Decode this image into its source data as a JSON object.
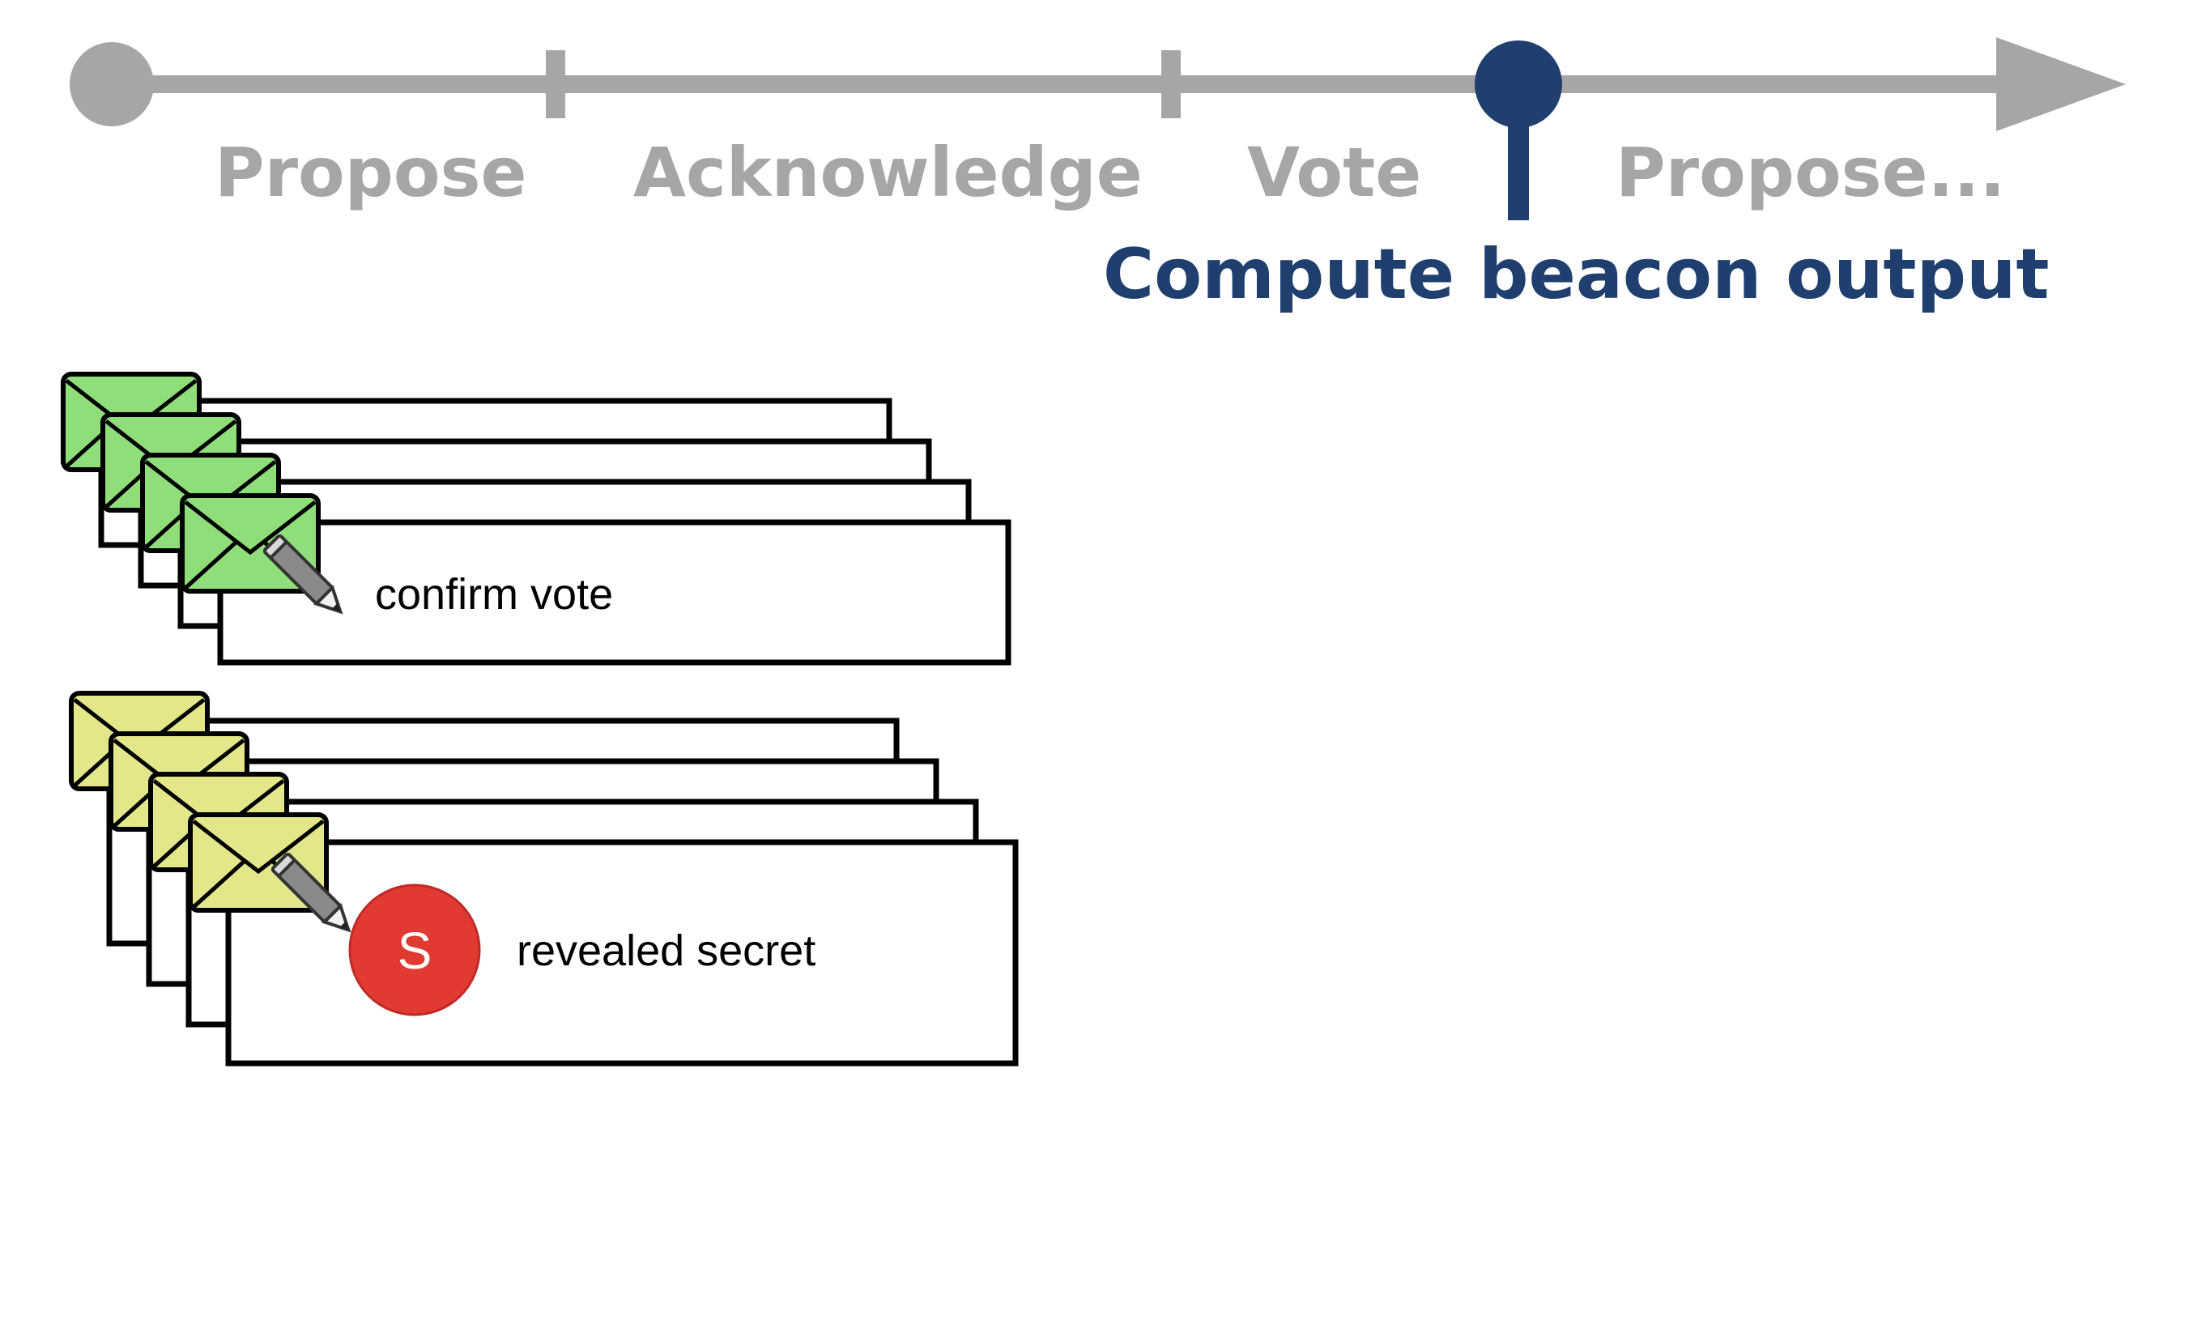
{
  "timeline": {
    "phases": [
      "Propose",
      "Acknowledge",
      "Vote",
      "Propose..."
    ],
    "current_step": "Compute beacon output",
    "colors": {
      "track": "#a6a6a6",
      "current": "#1f3f6e"
    }
  },
  "message_stacks": [
    {
      "label": "confirm vote",
      "envelope_color": "#8fde7a",
      "icons": [
        "envelope-icon",
        "pencil-icon"
      ]
    },
    {
      "label": "revealed secret",
      "envelope_color": "#e4e68a",
      "badge": {
        "letter": "S",
        "color": "#e03a33"
      },
      "icons": [
        "envelope-icon",
        "pencil-icon"
      ]
    }
  ]
}
